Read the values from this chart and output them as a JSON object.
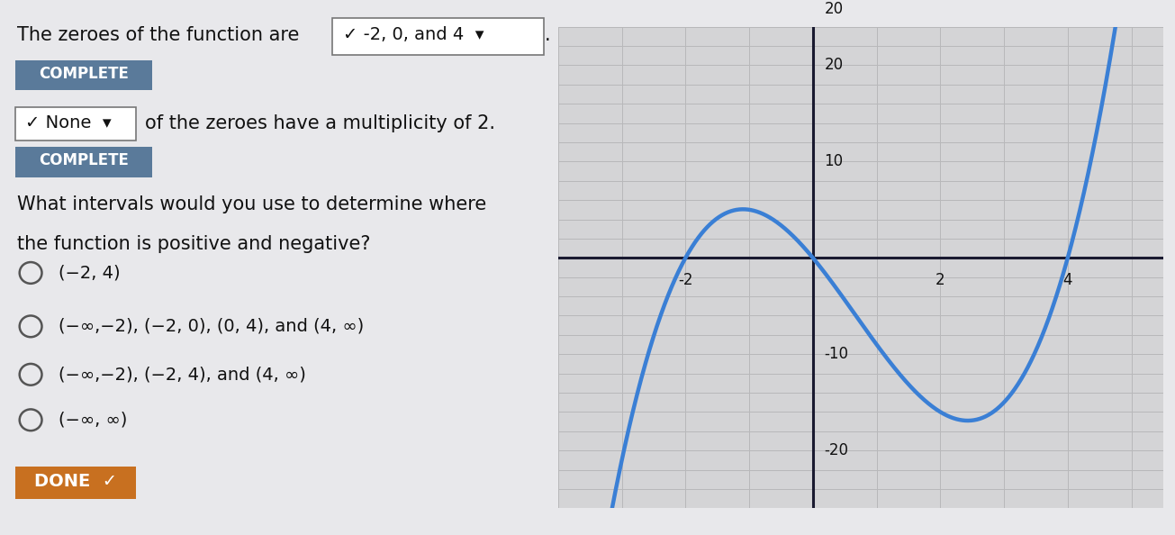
{
  "bg_color": "#e8e8eb",
  "left_panel_bg": "#eaeaec",
  "graph_bg": "#d4d4d6",
  "graph_grid_color": "#b8b8ba",
  "curve_color": "#3a7fd5",
  "curve_linewidth": 3.2,
  "axis_color": "#1a1a30",
  "text_color": "#111111",
  "complete_bg": "#5a7a9a",
  "complete_text": "COMPLETE",
  "done_bg": "#c87020",
  "done_text": "DONE  ✓",
  "options": [
    "(−2, 4)",
    "(−∞,−2), (−2, 0), (0, 4), and (4, ∞)",
    "(−∞,−2), (−2, 4), and (4, ∞)",
    "(−∞, ∞)"
  ],
  "xmin": -4.0,
  "xmax": 5.5,
  "ymin": -26,
  "ymax": 24,
  "xticks": [
    -2,
    2,
    4
  ],
  "yticks": [
    -20,
    -10,
    10,
    20
  ],
  "font_size_main": 15,
  "font_size_options": 14,
  "font_size_tick": 12
}
